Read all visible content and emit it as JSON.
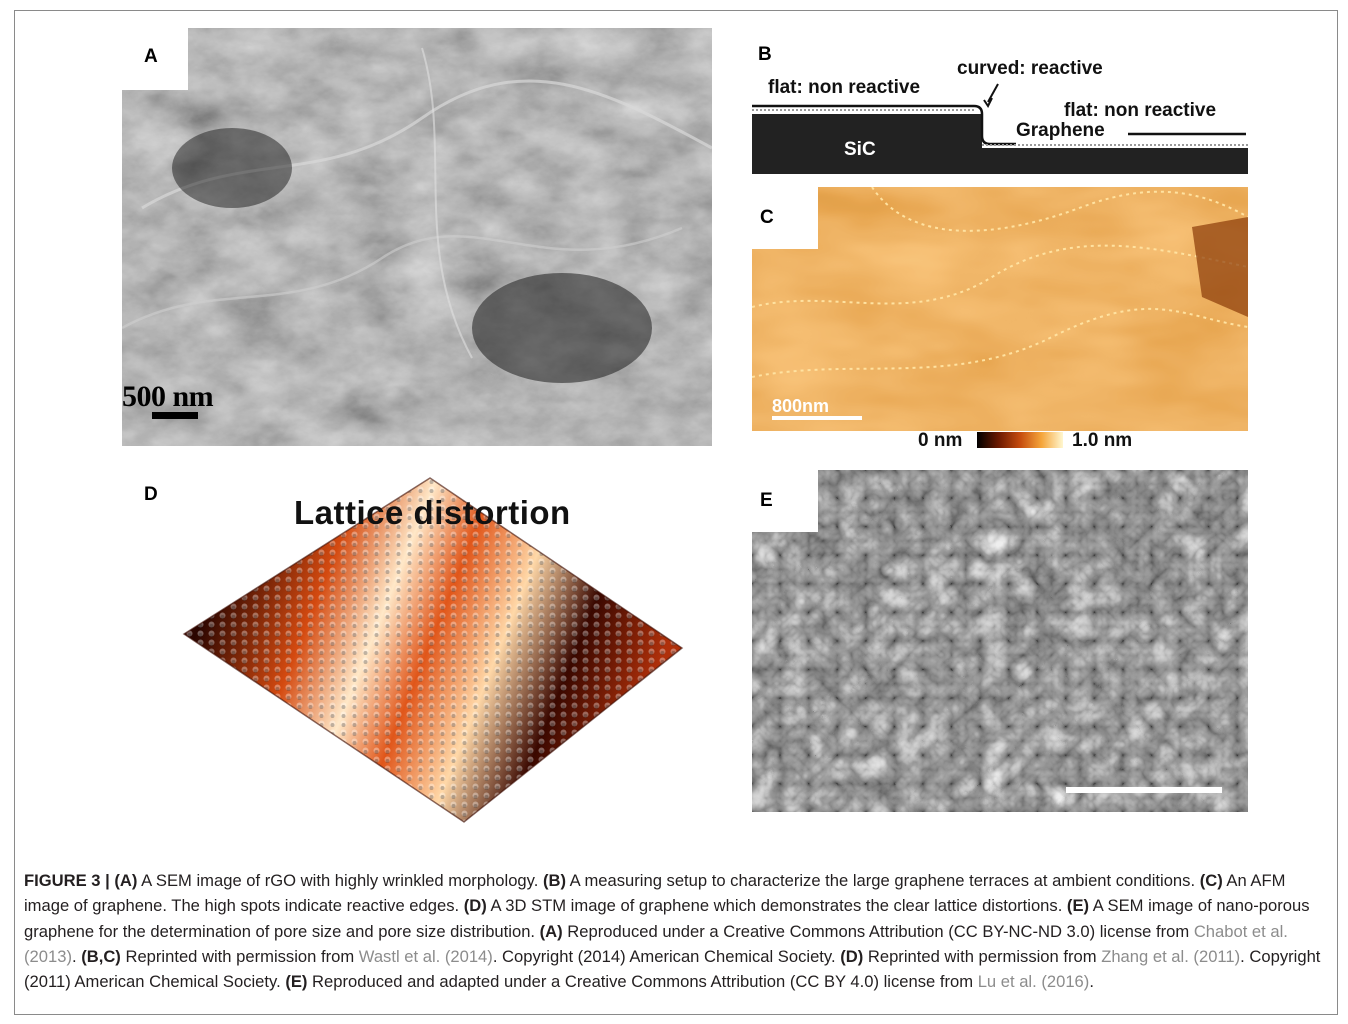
{
  "panel_a": {
    "letter": "A",
    "scalebar": "500 nm"
  },
  "panel_b": {
    "letter": "B",
    "label_flat_left": "flat: non reactive",
    "label_curved": "curved: reactive",
    "label_flat_right": "flat: non reactive",
    "label_graphene": "Graphene",
    "label_substrate": "SiC"
  },
  "panel_c": {
    "letter": "C",
    "scalebar": "800nm",
    "colorbar_min": "0 nm",
    "colorbar_max": "1.0 nm"
  },
  "panel_d": {
    "letter": "D",
    "title": "Lattice distortion"
  },
  "panel_e": {
    "letter": "E"
  },
  "caption": {
    "figure_label": "FIGURE 3 |",
    "s1_tag": "(A)",
    "s1_text": " A SEM image of rGO with highly wrinkled morphology. ",
    "s2_tag": "(B)",
    "s2_text": " A measuring setup to characterize the large graphene terraces at ambient conditions. ",
    "s3_tag": "(C)",
    "s3_text": " An AFM image of graphene. The high spots indicate reactive edges. ",
    "s4_tag": "(D)",
    "s4_text": " A 3D STM image of graphene which demonstrates the clear lattice distortions. ",
    "s5_tag": "(E)",
    "s5_text": " A SEM image of nano-porous graphene for the determination of pore size and pore size distribution. ",
    "r1_tag": "(A)",
    "r1_text": " Reproduced under a Creative Commons Attribution (CC BY-NC-ND 3.0) license from ",
    "r1_ref": "Chabot et al. (2013)",
    "r1_end": ". ",
    "r2_tag": "(B,C)",
    "r2_text": " Reprinted with permission from ",
    "r2_ref": "Wastl et al. (2014)",
    "r2_end": ". Copyright (2014) American Chemical Society. ",
    "r3_tag": "(D)",
    "r3_text": " Reprinted with permission from ",
    "r3_ref": "Zhang et al. (2011)",
    "r3_end": ". Copyright (2011) American Chemical Society. ",
    "r4_tag": "(E)",
    "r4_text": " Reproduced and adapted under a Creative Commons Attribution (CC BY 4.0) license from ",
    "r4_ref": "Lu et al. (2016)",
    "r4_end": "."
  }
}
